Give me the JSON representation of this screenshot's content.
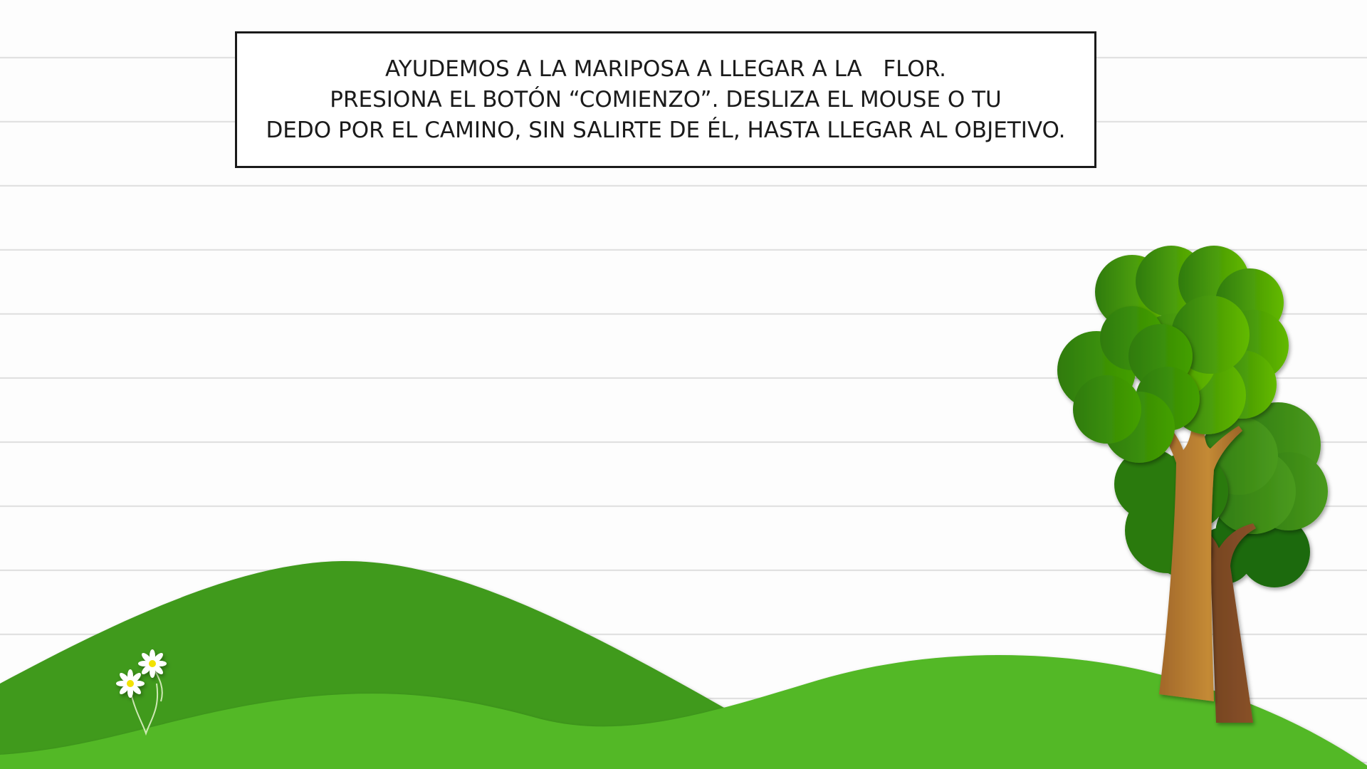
{
  "instructions": {
    "line1": "AYUDEMOS A LA MARIPOSA A LLEGAR A LA   FLOR.",
    "line2": "PRESIONA EL BOTÓN “COMIENZO”. DESLIZA EL MOUSE O TU",
    "line3": "DEDO POR EL CAMINO, SIN SALIRTE DE ÉL, HASTA LLEGAR AL OBJETIVO."
  },
  "colors": {
    "hill_back": "#3f9a1c",
    "hill_front": "#52b827",
    "tree_dark": "#2f7d12",
    "tree_light": "#5ab800",
    "trunk_light": "#b37a2c",
    "trunk_dark": "#7a4a26",
    "flower_petal": "#ffffff",
    "flower_center": "#f2e200"
  },
  "icons": {
    "flower": "daisy-flower-icon",
    "tree": "tree-icon"
  }
}
